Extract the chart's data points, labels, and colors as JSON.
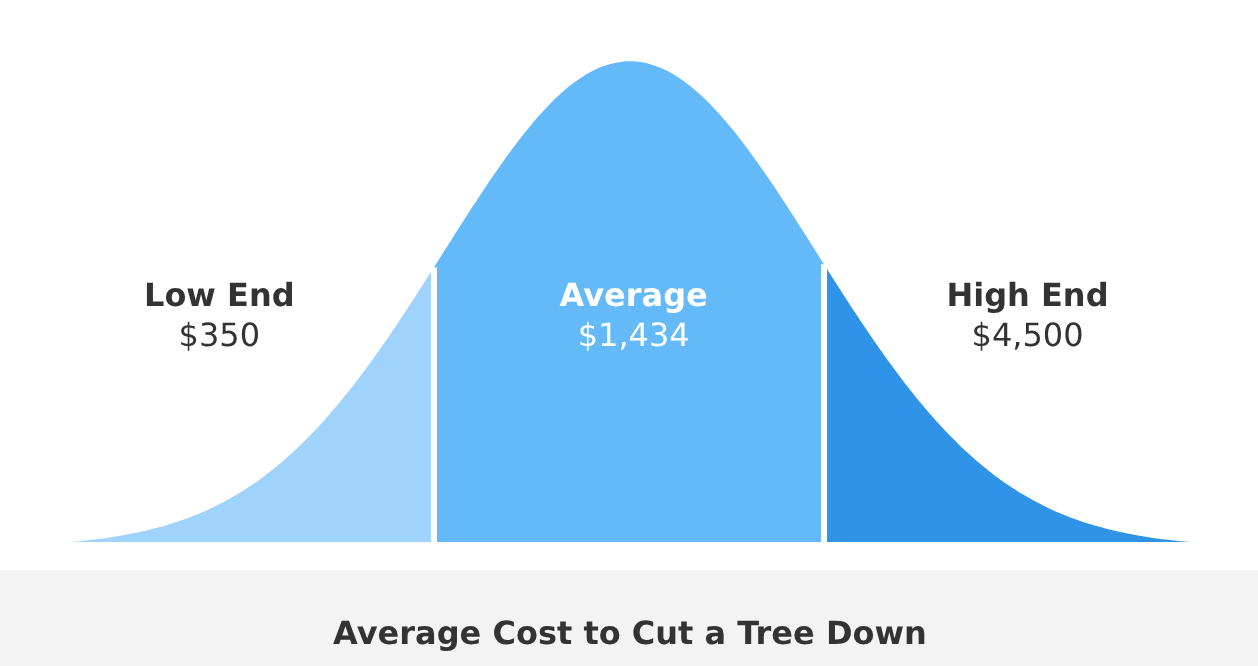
{
  "chart_data": {
    "type": "other",
    "title": "Average Cost to Cut a Tree Down",
    "categories": [
      "Low End",
      "Average",
      "High End"
    ],
    "values": [
      350,
      1434,
      4500
    ],
    "value_labels": [
      "$350",
      "$1,434",
      "$4,500"
    ],
    "colors": [
      "#9fd3fb",
      "#64b9f9",
      "#2f94e8"
    ]
  }
}
